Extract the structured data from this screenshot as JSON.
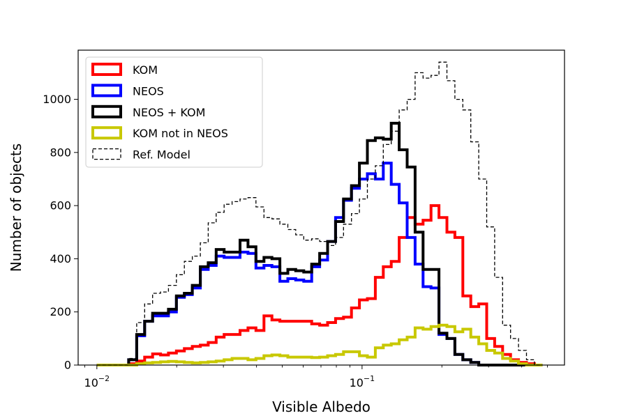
{
  "chart_data": {
    "type": "step-histogram",
    "xlabel": "Visible Albedo",
    "ylabel": "Number of objects",
    "xscale": "log",
    "xlim": [
      0.0085,
      0.58
    ],
    "ylim": [
      0,
      1185
    ],
    "x_ticks": [
      {
        "value": 0.01,
        "base": "10",
        "exp": "−2"
      },
      {
        "value": 0.1,
        "base": "10",
        "exp": "−1"
      }
    ],
    "y_ticks": [
      0,
      200,
      400,
      600,
      800,
      1000
    ],
    "legend_position": "upper left",
    "bin_edges": [
      0.01,
      0.01072,
      0.01148,
      0.0123,
      0.01318,
      0.01413,
      0.01514,
      0.01622,
      0.01738,
      0.01862,
      0.01995,
      0.02138,
      0.02291,
      0.02455,
      0.0263,
      0.02818,
      0.0302,
      0.03236,
      0.03467,
      0.03715,
      0.03981,
      0.04266,
      0.04571,
      0.04898,
      0.05248,
      0.05623,
      0.06026,
      0.06457,
      0.06918,
      0.07413,
      0.07943,
      0.08511,
      0.0912,
      0.09772,
      0.10471,
      0.1122,
      0.12023,
      0.12882,
      0.13804,
      0.14791,
      0.15849,
      0.16982,
      0.18197,
      0.19498,
      0.20893,
      0.22387,
      0.23988,
      0.25704,
      0.27542,
      0.29512,
      0.31623,
      0.33884,
      0.36308,
      0.38905,
      0.41687,
      0.44668,
      0.47863,
      0.51286
    ],
    "series": [
      {
        "name": "KOM",
        "color": "#ff0000",
        "style": "solid",
        "values": [
          0,
          0,
          0,
          0,
          5,
          15,
          30,
          42,
          38,
          45,
          53,
          62,
          70,
          75,
          85,
          105,
          115,
          115,
          130,
          140,
          130,
          185,
          170,
          165,
          165,
          165,
          165,
          155,
          150,
          160,
          175,
          180,
          215,
          245,
          250,
          330,
          370,
          390,
          480,
          555,
          530,
          545,
          600,
          555,
          500,
          480,
          260,
          220,
          230,
          100,
          70,
          40,
          20,
          10,
          5,
          0
        ]
      },
      {
        "name": "NEOS",
        "color": "#0000ff",
        "style": "solid",
        "values": [
          0,
          0,
          0,
          0,
          20,
          110,
          165,
          185,
          185,
          200,
          255,
          265,
          290,
          360,
          375,
          410,
          405,
          405,
          425,
          420,
          365,
          375,
          370,
          315,
          325,
          320,
          315,
          370,
          395,
          465,
          555,
          620,
          665,
          700,
          720,
          700,
          760,
          680,
          610,
          480,
          380,
          295,
          290,
          115,
          100,
          40,
          20,
          10,
          0,
          0,
          0,
          0,
          0,
          0,
          0,
          0
        ]
      },
      {
        "name": "NEOS + KOM",
        "color": "#000000",
        "style": "solid",
        "values": [
          0,
          0,
          0,
          0,
          20,
          115,
          165,
          195,
          195,
          210,
          260,
          270,
          300,
          370,
          385,
          435,
          425,
          425,
          470,
          445,
          390,
          405,
          400,
          345,
          360,
          355,
          350,
          380,
          420,
          465,
          540,
          625,
          675,
          760,
          845,
          855,
          850,
          910,
          810,
          745,
          500,
          360,
          360,
          120,
          100,
          40,
          20,
          10,
          0,
          0,
          0,
          0,
          0,
          0,
          0,
          0
        ]
      },
      {
        "name": "KOM not in NEOS",
        "color": "#c8c800",
        "style": "solid",
        "values": [
          0,
          0,
          0,
          0,
          0,
          5,
          8,
          10,
          12,
          14,
          12,
          10,
          8,
          10,
          12,
          15,
          20,
          25,
          25,
          20,
          25,
          35,
          38,
          35,
          30,
          30,
          30,
          28,
          30,
          35,
          40,
          50,
          50,
          35,
          30,
          65,
          75,
          80,
          95,
          105,
          140,
          135,
          145,
          150,
          145,
          125,
          135,
          105,
          80,
          55,
          45,
          25,
          15,
          5,
          0,
          0
        ]
      },
      {
        "name": "Ref. Model",
        "color": "#000000",
        "style": "dashed",
        "values": [
          0,
          0,
          0,
          0,
          25,
          160,
          230,
          270,
          275,
          300,
          340,
          390,
          410,
          460,
          535,
          575,
          605,
          615,
          625,
          630,
          595,
          555,
          550,
          530,
          510,
          490,
          470,
          475,
          465,
          450,
          480,
          530,
          570,
          625,
          700,
          750,
          830,
          880,
          960,
          1000,
          1100,
          1080,
          1090,
          1140,
          1070,
          1000,
          960,
          840,
          700,
          520,
          330,
          150,
          100,
          55,
          20,
          0
        ]
      }
    ]
  }
}
